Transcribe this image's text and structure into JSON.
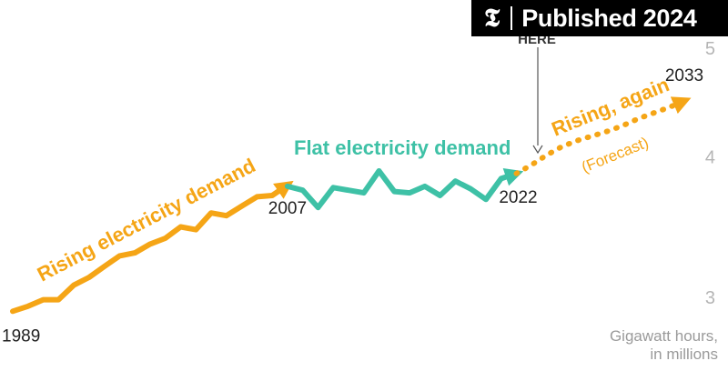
{
  "badge": {
    "logo": "𝕿",
    "text": "Published 2024"
  },
  "annotations": {
    "here": "HERE",
    "rising": "Rising electricity demand",
    "flat": "Flat electricity demand",
    "rising_again": "Rising, again",
    "forecast": "(Forecast)",
    "unit_line1": "Gigawatt hours,",
    "unit_line2": "in millions"
  },
  "chart_data": {
    "type": "line",
    "title": "",
    "xlabel": "",
    "ylabel": "Gigawatt hours, in millions",
    "y_scale": "log",
    "ylim": [
      2.9,
      5.3
    ],
    "y_ticks": [
      3,
      4,
      5
    ],
    "grid": false,
    "colors": {
      "rising": "#F5A516",
      "flat": "#3EC1A6",
      "forecast": "#F5A516",
      "text": "#222222",
      "muted": "#9a9a9a"
    },
    "x_labels": [
      {
        "x": 1989,
        "label": "1989"
      },
      {
        "x": 2007,
        "label": "2007"
      },
      {
        "x": 2022,
        "label": "2022"
      },
      {
        "x": 2033,
        "label": "2033"
      }
    ],
    "series": [
      {
        "name": "Rising electricity demand",
        "x": [
          1989,
          1990,
          1991,
          1992,
          1993,
          1994,
          1995,
          1996,
          1997,
          1998,
          1999,
          2000,
          2001,
          2002,
          2003,
          2004,
          2005,
          2006,
          2007
        ],
        "values": [
          2.91,
          2.94,
          2.98,
          2.98,
          3.07,
          3.12,
          3.19,
          3.26,
          3.28,
          3.34,
          3.38,
          3.46,
          3.44,
          3.56,
          3.54,
          3.61,
          3.68,
          3.69,
          3.77
        ]
      },
      {
        "name": "Flat electricity demand",
        "x": [
          2007,
          2008,
          2009,
          2010,
          2011,
          2012,
          2013,
          2014,
          2015,
          2016,
          2017,
          2018,
          2019,
          2020,
          2021,
          2022
        ],
        "values": [
          3.76,
          3.73,
          3.6,
          3.75,
          3.73,
          3.71,
          3.88,
          3.72,
          3.71,
          3.76,
          3.69,
          3.8,
          3.74,
          3.66,
          3.82,
          3.86
        ]
      },
      {
        "name": "Rising, again (Forecast)",
        "x": [
          2022,
          2023,
          2024,
          2025,
          2026,
          2027,
          2028,
          2029,
          2030,
          2031,
          2032,
          2033
        ],
        "values": [
          3.86,
          3.93,
          4.01,
          4.08,
          4.13,
          4.17,
          4.21,
          4.26,
          4.32,
          4.37,
          4.42,
          4.48
        ]
      }
    ]
  }
}
